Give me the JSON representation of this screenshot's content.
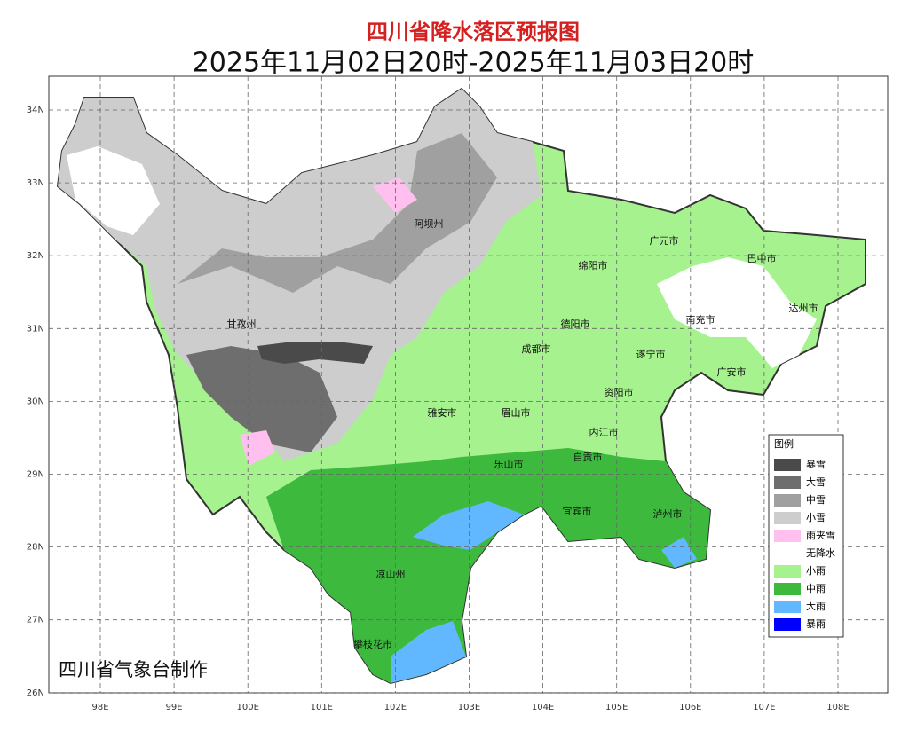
{
  "header": {
    "title": "四川省降水落区预报图",
    "subtitle": "2025年11月02日20时-2025年11月03日20时"
  },
  "map": {
    "lon_ticks": [
      {
        "value": 98,
        "label": "98E"
      },
      {
        "value": 99,
        "label": "99E"
      },
      {
        "value": 100,
        "label": "100E"
      },
      {
        "value": 101,
        "label": "101E"
      },
      {
        "value": 102,
        "label": "102E"
      },
      {
        "value": 103,
        "label": "103E"
      },
      {
        "value": 104,
        "label": "104E"
      },
      {
        "value": 105,
        "label": "105E"
      },
      {
        "value": 106,
        "label": "106E"
      },
      {
        "value": 107,
        "label": "107E"
      },
      {
        "value": 108,
        "label": "108E"
      }
    ],
    "lat_ticks": [
      {
        "value": 34,
        "label": "34N"
      },
      {
        "value": 33,
        "label": "33N"
      },
      {
        "value": 32,
        "label": "32N"
      },
      {
        "value": 31,
        "label": "31N"
      },
      {
        "value": 30,
        "label": "30N"
      },
      {
        "value": 29,
        "label": "29N"
      },
      {
        "value": 28,
        "label": "28N"
      },
      {
        "value": 27,
        "label": "27N"
      },
      {
        "value": 26,
        "label": "26N"
      }
    ],
    "regions": [
      "阿坝州",
      "甘孜州",
      "绵阳市",
      "广元市",
      "巴中市",
      "达州市",
      "南充市",
      "德阳市",
      "成都市",
      "遂宁市",
      "广安市",
      "资阳市",
      "雅安市",
      "眉山市",
      "内江市",
      "自贡市",
      "乐山市",
      "宜宾市",
      "泸州市",
      "凉山州",
      "攀枝花市"
    ],
    "legend": {
      "title": "图例",
      "items": [
        {
          "name": "暴雪",
          "color": "#4a4a4a"
        },
        {
          "name": "大雪",
          "color": "#6e6e6e"
        },
        {
          "name": "中雪",
          "color": "#a0a0a0"
        },
        {
          "name": "小雪",
          "color": "#cdcdcd"
        },
        {
          "name": "雨夹雪",
          "color": "#ffc0ef"
        },
        {
          "name": "无降水",
          "color": "#ffffff"
        },
        {
          "name": "小雨",
          "color": "#a6f28f"
        },
        {
          "name": "中雨",
          "color": "#3dba3d"
        },
        {
          "name": "大雨",
          "color": "#61b8ff"
        },
        {
          "name": "暴雨",
          "color": "#0000fe"
        }
      ]
    },
    "credit": "四川省气象台制作"
  }
}
